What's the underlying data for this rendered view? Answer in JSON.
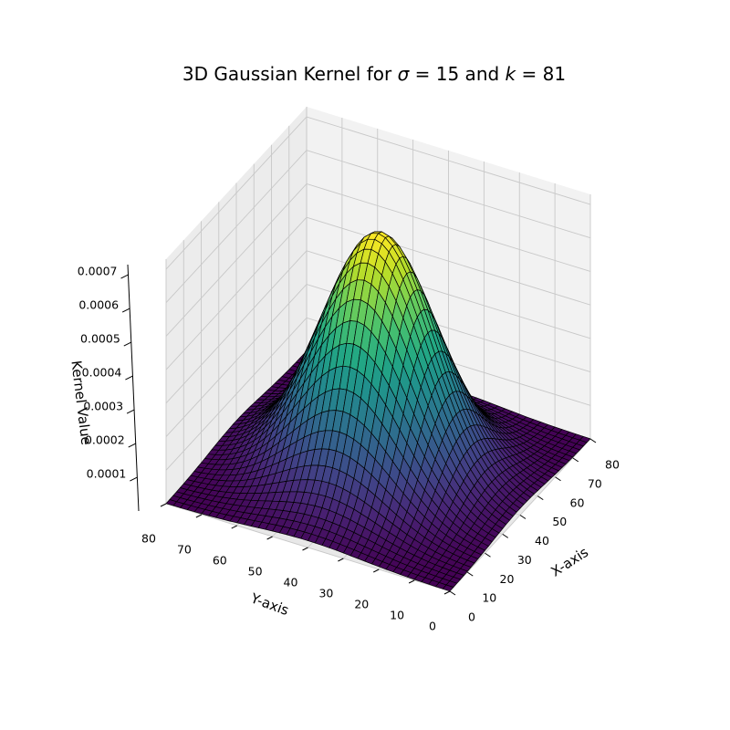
{
  "chart_data": {
    "type": "surface",
    "title_prefix": "3D Gaussian Kernel for ",
    "title_sigma_symbol": "σ",
    "title_equals": " = ",
    "title_sigma_value": "15",
    "title_and": " and ",
    "title_k_symbol": "k",
    "title_k_value": "81",
    "sigma": 15,
    "kernel_size": 81,
    "xlabel": "X-axis",
    "ylabel": "Y-axis",
    "zlabel": "Kernel Value",
    "xlim": [
      0,
      80
    ],
    "ylim": [
      0,
      80
    ],
    "zlim": [
      0,
      0.00073
    ],
    "x_ticks": [
      "0",
      "10",
      "20",
      "30",
      "40",
      "50",
      "60",
      "70",
      "80"
    ],
    "y_ticks": [
      "0",
      "10",
      "20",
      "30",
      "40",
      "50",
      "60",
      "70",
      "80"
    ],
    "z_ticks": [
      "0.0001",
      "0.0002",
      "0.0003",
      "0.0004",
      "0.0005",
      "0.0006",
      "0.0007"
    ],
    "z_tick_values": [
      0.0001,
      0.0002,
      0.0003,
      0.0004,
      0.0005,
      0.0006,
      0.0007
    ],
    "peak_value": 0.00071,
    "peak_location": [
      40,
      40
    ],
    "colormap": "viridis",
    "edge_color": "#000000",
    "grid": true,
    "pane_color": "#f2f2f2"
  }
}
